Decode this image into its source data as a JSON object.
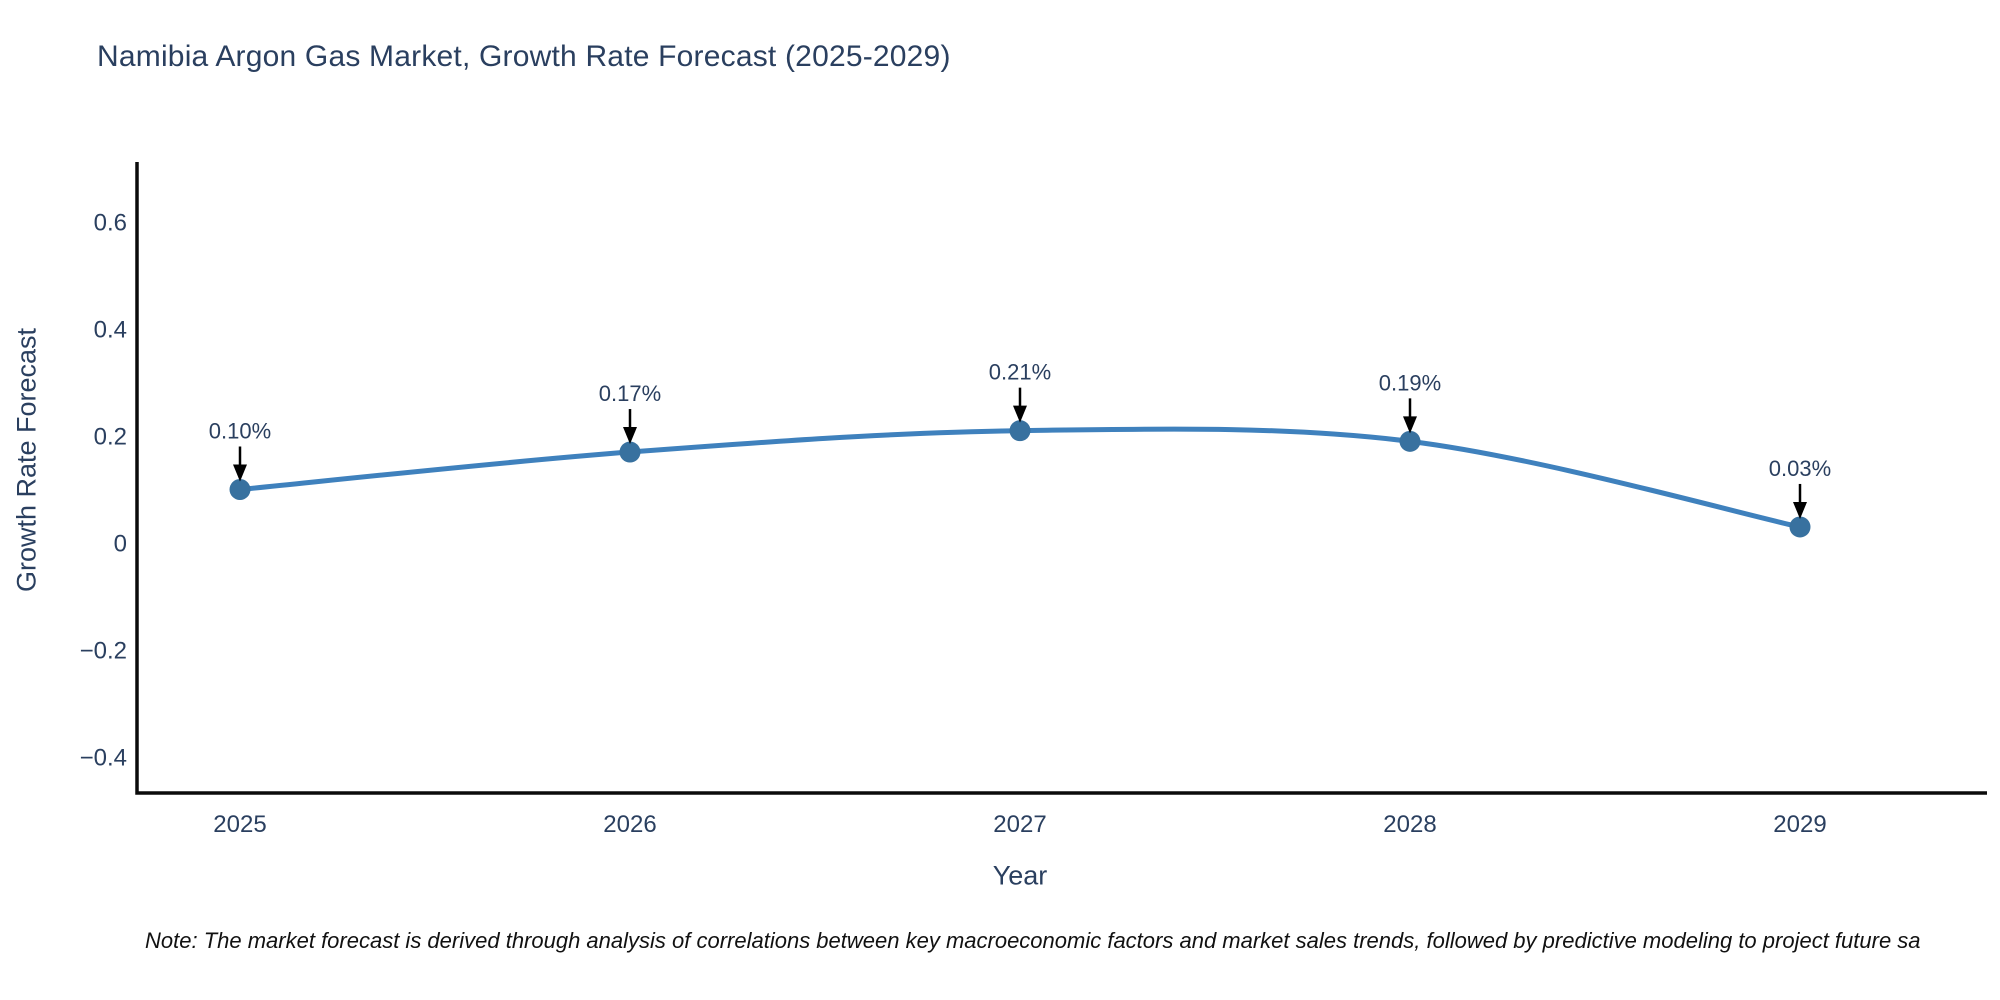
{
  "chart_data": {
    "type": "line",
    "title": "Namibia Argon Gas Market, Growth Rate Forecast (2025-2029)",
    "xlabel": "Year",
    "ylabel": "Growth Rate Forecast",
    "categories": [
      "2025",
      "2026",
      "2027",
      "2028",
      "2029"
    ],
    "series": [
      {
        "name": "Growth Rate Forecast",
        "values": [
          0.1,
          0.17,
          0.21,
          0.19,
          0.03
        ]
      }
    ],
    "point_labels": [
      "0.10%",
      "0.17%",
      "0.21%",
      "0.19%",
      "0.03%"
    ],
    "yticks": [
      0.6,
      0.4,
      0.2,
      0,
      -0.2,
      -0.4
    ],
    "ytick_labels": [
      "0.6",
      "0.4",
      "0.2",
      "0",
      "−0.2",
      "−0.4"
    ],
    "ylim": [
      -0.47,
      0.71
    ],
    "grid": false,
    "legend": "none",
    "line_shape": "spline",
    "colors": {
      "line": "#3f81bd",
      "marker": "#38719f",
      "arrow": "#000000",
      "axis": "#0b0b0b",
      "text": "#2a3f5f"
    },
    "note": "Note: The market forecast is derived through analysis of correlations between key macroeconomic factors and market sales trends, followed by predictive modeling to project future sa"
  }
}
